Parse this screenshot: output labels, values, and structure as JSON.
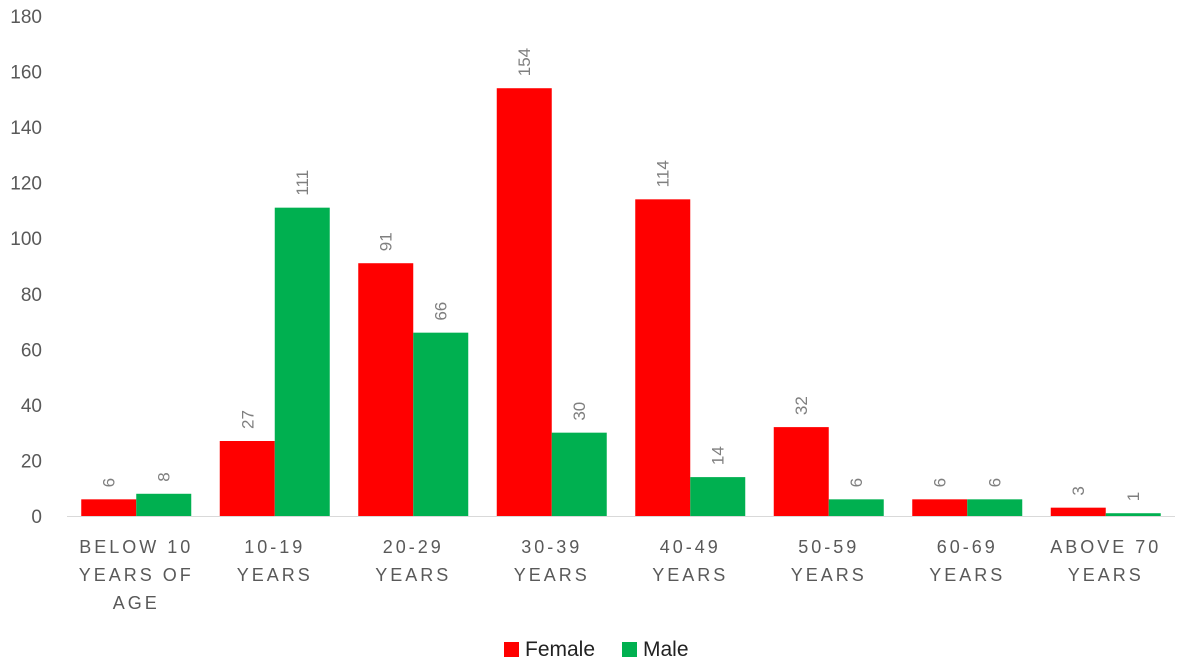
{
  "chart_data": {
    "type": "bar",
    "categories": [
      [
        "BELOW 10",
        "YEARS OF",
        "AGE"
      ],
      [
        "10-19",
        "YEARS"
      ],
      [
        "20-29",
        "YEARS"
      ],
      [
        "30-39",
        "YEARS"
      ],
      [
        "40-49",
        "YEARS"
      ],
      [
        "50-59",
        "YEARS"
      ],
      [
        "60-69",
        "YEARS"
      ],
      [
        "ABOVE 70",
        "YEARS"
      ]
    ],
    "series": [
      {
        "name": "Female",
        "color": "#ff0000",
        "values": [
          6,
          27,
          91,
          154,
          114,
          32,
          6,
          3
        ]
      },
      {
        "name": "Male",
        "color": "#00b050",
        "values": [
          8,
          111,
          66,
          30,
          14,
          6,
          6,
          1
        ]
      }
    ],
    "yticks": [
      0,
      20,
      40,
      60,
      80,
      100,
      120,
      140,
      160,
      180
    ],
    "ylim": [
      0,
      180
    ],
    "grid": false,
    "data_labels": true,
    "legend_position": "bottom"
  }
}
